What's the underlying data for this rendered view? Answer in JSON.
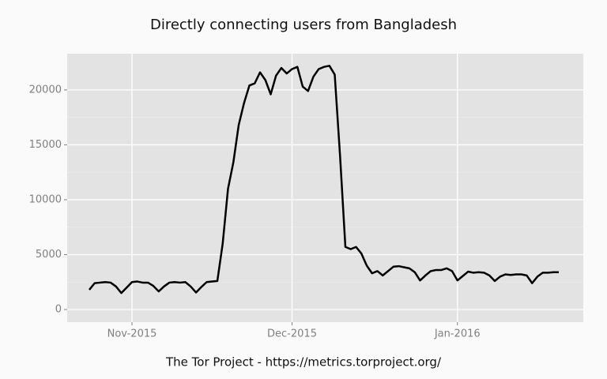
{
  "chart_data": {
    "type": "line",
    "title": "Directly connecting users from Bangladesh",
    "caption": "The Tor Project - https://metrics.torproject.org/",
    "categories": [
      null,
      null,
      null,
      null,
      null,
      null,
      null,
      null,
      "Nov-2015",
      null,
      null,
      null,
      null,
      null,
      null,
      null,
      null,
      null,
      null,
      null,
      null,
      null,
      null,
      null,
      null,
      null,
      null,
      null,
      null,
      null,
      null,
      null,
      null,
      null,
      null,
      null,
      null,
      null,
      "Dec-2015",
      null,
      null,
      null,
      null,
      null,
      null,
      null,
      null,
      null,
      null,
      null,
      null,
      null,
      null,
      null,
      null,
      null,
      null,
      null,
      null,
      null,
      null,
      null,
      null,
      null,
      null,
      null,
      null,
      null,
      null,
      "Jan-2016",
      null,
      null,
      null,
      null,
      null,
      null,
      null,
      null,
      null,
      null,
      null,
      null,
      null,
      null,
      null,
      null,
      null,
      null,
      null
    ],
    "values": [
      1800,
      2400,
      2450,
      2500,
      2450,
      2100,
      1500,
      2000,
      2500,
      2550,
      2450,
      2450,
      2150,
      1650,
      2100,
      2450,
      2500,
      2450,
      2500,
      2100,
      1550,
      2050,
      2500,
      2550,
      2600,
      6000,
      11000,
      13400,
      16800,
      18800,
      20400,
      20600,
      21600,
      20900,
      19600,
      21300,
      22000,
      21500,
      21900,
      22100,
      20300,
      19900,
      21200,
      21900,
      22100,
      22200,
      21400,
      14000,
      5700,
      5500,
      5700,
      5100,
      4000,
      3300,
      3500,
      3100,
      3500,
      3900,
      3950,
      3850,
      3750,
      3400,
      2650,
      3100,
      3500,
      3600,
      3600,
      3750,
      3500,
      2650,
      3050,
      3450,
      3350,
      3400,
      3350,
      3100,
      2600,
      3000,
      3200,
      3150,
      3200,
      3200,
      3100,
      2400,
      3000,
      3350,
      3350,
      3400,
      3400
    ],
    "color": "#000000",
    "ylim": [
      -1150,
      23300
    ],
    "yticks": [
      0,
      5000,
      10000,
      15000,
      20000
    ],
    "grid": true
  }
}
